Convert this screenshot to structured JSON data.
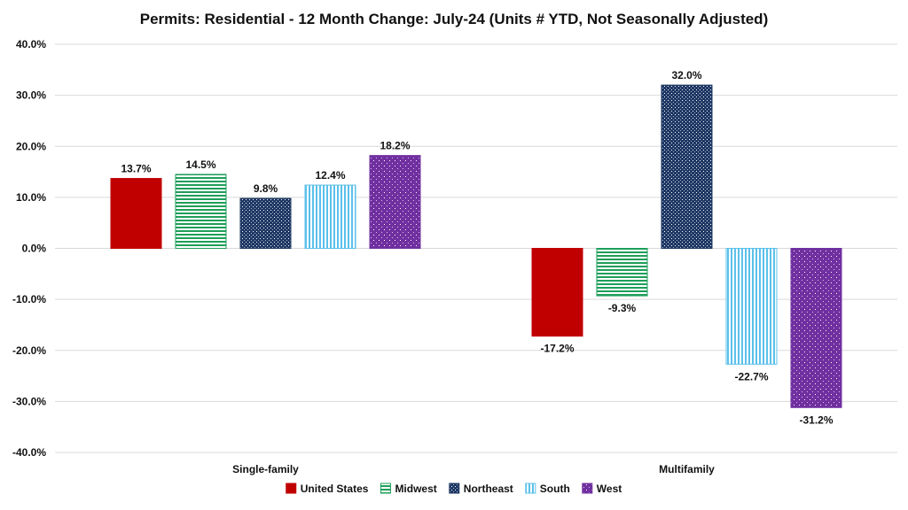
{
  "chart_data": {
    "type": "bar",
    "title": "Permits: Residential - 12 Month Change:  July-24 (Units # YTD, Not Seasonally Adjusted)",
    "categories": [
      "Single-family",
      "Multifamily"
    ],
    "series": [
      {
        "name": "United States",
        "values": [
          13.7,
          -17.2
        ],
        "labels": [
          "13.7%",
          "-17.2%"
        ],
        "color": "#c00000",
        "pattern": "solid"
      },
      {
        "name": "Midwest",
        "values": [
          14.5,
          -9.3
        ],
        "labels": [
          "14.5%",
          "-9.3%"
        ],
        "color": "#1e9e5a",
        "pattern": "hlines"
      },
      {
        "name": "Northeast",
        "values": [
          9.8,
          32.0
        ],
        "labels": [
          "9.8%",
          "32.0%"
        ],
        "color": "#1f3864",
        "pattern": "dots-dark"
      },
      {
        "name": "South",
        "values": [
          12.4,
          -22.7
        ],
        "labels": [
          "12.4%",
          "-22.7%"
        ],
        "color": "#5bc0eb",
        "pattern": "vlines"
      },
      {
        "name": "West",
        "values": [
          18.2,
          -31.2
        ],
        "labels": [
          "18.2%",
          "-31.2%"
        ],
        "color": "#7030a0",
        "pattern": "dots-light"
      }
    ],
    "yticks": [
      40,
      30,
      20,
      10,
      0,
      -10,
      -20,
      -30,
      -40
    ],
    "ytick_labels": [
      "40.0%",
      "30.0%",
      "20.0%",
      "10.0%",
      "0.0%",
      "-10.0%",
      "-20.0%",
      "-30.0%",
      "-40.0%"
    ],
    "ylim": [
      -40,
      40
    ],
    "xlabel": "",
    "ylabel": "",
    "grid": true,
    "legend_position": "bottom-center"
  }
}
